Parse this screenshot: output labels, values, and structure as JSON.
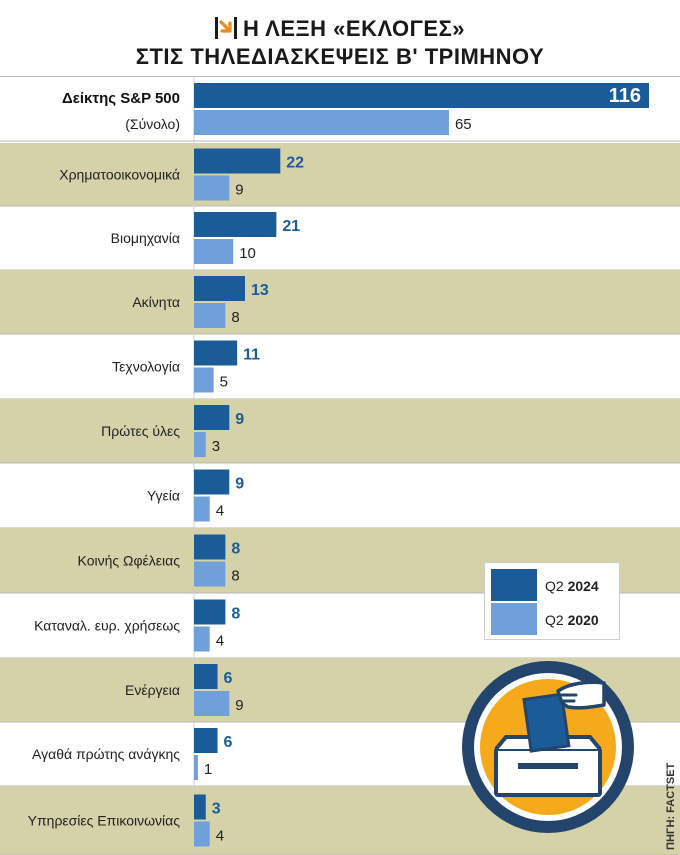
{
  "header": {
    "title_line1": "Η ΛΕΞΗ «ΕΚΛΟΓΕΣ»",
    "title_line2": "ΣΤΙΣ ΤΗΛΕΔΙΑΣΚΕΨΕΙΣ Β' ΤΡΙΜΗΝΟΥ"
  },
  "colors": {
    "series_2024": "#1b5c98",
    "series_2020": "#6fa0d9",
    "band": "#d5d1a8",
    "badge_orange": "#f5a91b",
    "badge_navy": "#23456b"
  },
  "legend": {
    "items": [
      {
        "prefix": "Q2 ",
        "year": "2024"
      },
      {
        "prefix": "Q2 ",
        "year": "2020"
      }
    ]
  },
  "source": "ΠΗΓΗ: FACTSET",
  "chart_data": {
    "type": "bar",
    "orientation": "horizontal",
    "categories": [
      "Δείκτης S&P 500",
      "Χρηματοοικονομικά",
      "Βιομηχανία",
      "Ακίνητα",
      "Τεχνολογία",
      "Πρώτες ύλες",
      "Υγεία",
      "Κοινής Ωφέλειας",
      "Καταναλ. ευρ. χρήσεως",
      "Ενέργεια",
      "Αγαθά πρώτης ανάγκης",
      "Υπηρεσίες Επικοινωνίας"
    ],
    "first_category_subtitle": "(Σύνολο)",
    "series": [
      {
        "name": "Q2 2024",
        "values": [
          116,
          22,
          21,
          13,
          11,
          9,
          9,
          8,
          8,
          6,
          6,
          3
        ]
      },
      {
        "name": "Q2 2020",
        "values": [
          65,
          9,
          10,
          8,
          5,
          3,
          4,
          8,
          4,
          9,
          1,
          4
        ]
      }
    ],
    "xlim": [
      0,
      116
    ],
    "legend_position": "right"
  }
}
